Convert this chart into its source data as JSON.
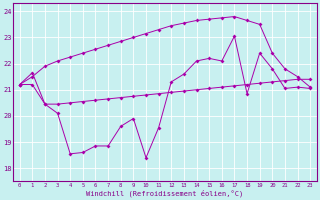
{
  "xlabel": "Windchill (Refroidissement éolien,°C)",
  "bg_color": "#c8f0f0",
  "line_color": "#aa00aa",
  "xlim": [
    -0.5,
    23.5
  ],
  "ylim": [
    17.5,
    24.3
  ],
  "yticks": [
    18,
    19,
    20,
    21,
    22,
    23,
    24
  ],
  "xticks": [
    0,
    1,
    2,
    3,
    4,
    5,
    6,
    7,
    8,
    9,
    10,
    11,
    12,
    13,
    14,
    15,
    16,
    17,
    18,
    19,
    20,
    21,
    22,
    23
  ],
  "series_A": [
    21.2,
    21.65,
    20.45,
    20.1,
    18.55,
    18.6,
    18.85,
    18.85,
    19.6,
    19.9,
    18.4,
    19.55,
    21.3,
    21.6,
    22.1,
    22.2,
    22.1,
    23.05,
    20.85,
    22.4,
    21.8,
    21.05,
    21.1,
    21.05
  ],
  "series_B": [
    21.2,
    21.2,
    20.45,
    20.45,
    20.5,
    20.55,
    20.6,
    20.65,
    20.7,
    20.75,
    20.8,
    20.85,
    20.9,
    20.95,
    21.0,
    21.05,
    21.1,
    21.15,
    21.2,
    21.25,
    21.3,
    21.35,
    21.4,
    21.4
  ],
  "series_C": [
    21.2,
    21.5,
    21.9,
    22.1,
    22.25,
    22.4,
    22.55,
    22.7,
    22.85,
    23.0,
    23.15,
    23.3,
    23.45,
    23.55,
    23.65,
    23.7,
    23.75,
    23.8,
    23.65,
    23.5,
    22.4,
    21.8,
    21.5,
    21.1
  ]
}
